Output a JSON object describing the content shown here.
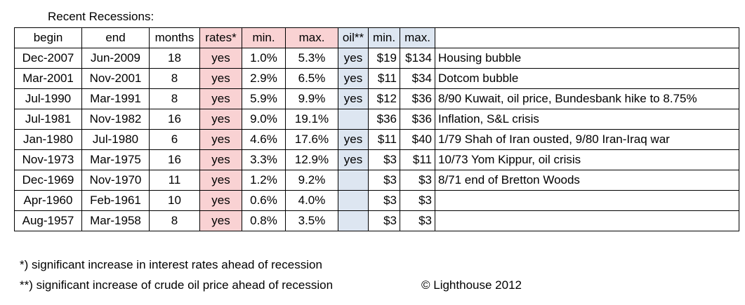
{
  "title": "Recent Recessions:",
  "colors": {
    "rates_highlight": "#f9d2d3",
    "oil_highlight": "#dde6f1"
  },
  "headers": {
    "begin": "begin",
    "end": "end",
    "months": "months",
    "rates": "rates*",
    "rate_min": "min.",
    "rate_max": "max.",
    "oil": "oil**",
    "oil_min": "min.",
    "oil_max": "max.",
    "description": ""
  },
  "rows": [
    {
      "begin": "Dec-2007",
      "end": "Jun-2009",
      "months": "18",
      "rates": "yes",
      "rate_min": "1.0%",
      "rate_max": "5.3%",
      "oil": "yes",
      "oil_min": "$19",
      "oil_max": "$134",
      "description": "Housing bubble"
    },
    {
      "begin": "Mar-2001",
      "end": "Nov-2001",
      "months": "8",
      "rates": "yes",
      "rate_min": "2.9%",
      "rate_max": "6.5%",
      "oil": "yes",
      "oil_min": "$11",
      "oil_max": "$34",
      "description": "Dotcom bubble"
    },
    {
      "begin": "Jul-1990",
      "end": "Mar-1991",
      "months": "8",
      "rates": "yes",
      "rate_min": "5.9%",
      "rate_max": "9.9%",
      "oil": "yes",
      "oil_min": "$12",
      "oil_max": "$36",
      "description": "8/90 Kuwait, oil price, Bundesbank hike to 8.75%"
    },
    {
      "begin": "Jul-1981",
      "end": "Nov-1982",
      "months": "16",
      "rates": "yes",
      "rate_min": "9.0%",
      "rate_max": "19.1%",
      "oil": "",
      "oil_min": "$36",
      "oil_max": "$36",
      "description": "Inflation, S&L crisis"
    },
    {
      "begin": "Jan-1980",
      "end": "Jul-1980",
      "months": "6",
      "rates": "yes",
      "rate_min": "4.6%",
      "rate_max": "17.6%",
      "oil": "yes",
      "oil_min": "$11",
      "oil_max": "$40",
      "description": "1/79 Shah of Iran ousted, 9/80 Iran-Iraq war"
    },
    {
      "begin": "Nov-1973",
      "end": "Mar-1975",
      "months": "16",
      "rates": "yes",
      "rate_min": "3.3%",
      "rate_max": "12.9%",
      "oil": "yes",
      "oil_min": "$3",
      "oil_max": "$11",
      "description": "10/73 Yom Kippur, oil crisis"
    },
    {
      "begin": "Dec-1969",
      "end": "Nov-1970",
      "months": "11",
      "rates": "yes",
      "rate_min": "1.2%",
      "rate_max": "9.2%",
      "oil": "",
      "oil_min": "$3",
      "oil_max": "$3",
      "description": "8/71 end of Bretton Woods"
    },
    {
      "begin": "Apr-1960",
      "end": "Feb-1961",
      "months": "10",
      "rates": "yes",
      "rate_min": "0.6%",
      "rate_max": "4.0%",
      "oil": "",
      "oil_min": "$3",
      "oil_max": "$3",
      "description": ""
    },
    {
      "begin": "Aug-1957",
      "end": "Mar-1958",
      "months": "8",
      "rates": "yes",
      "rate_min": "0.8%",
      "rate_max": "3.5%",
      "oil": "",
      "oil_min": "$3",
      "oil_max": "$3",
      "description": ""
    }
  ],
  "footnotes": {
    "rates": "*) significant increase in interest rates ahead of recession",
    "oil": "**) significant increase of crude oil price ahead of recession",
    "copyright": "© Lighthouse 2012"
  }
}
